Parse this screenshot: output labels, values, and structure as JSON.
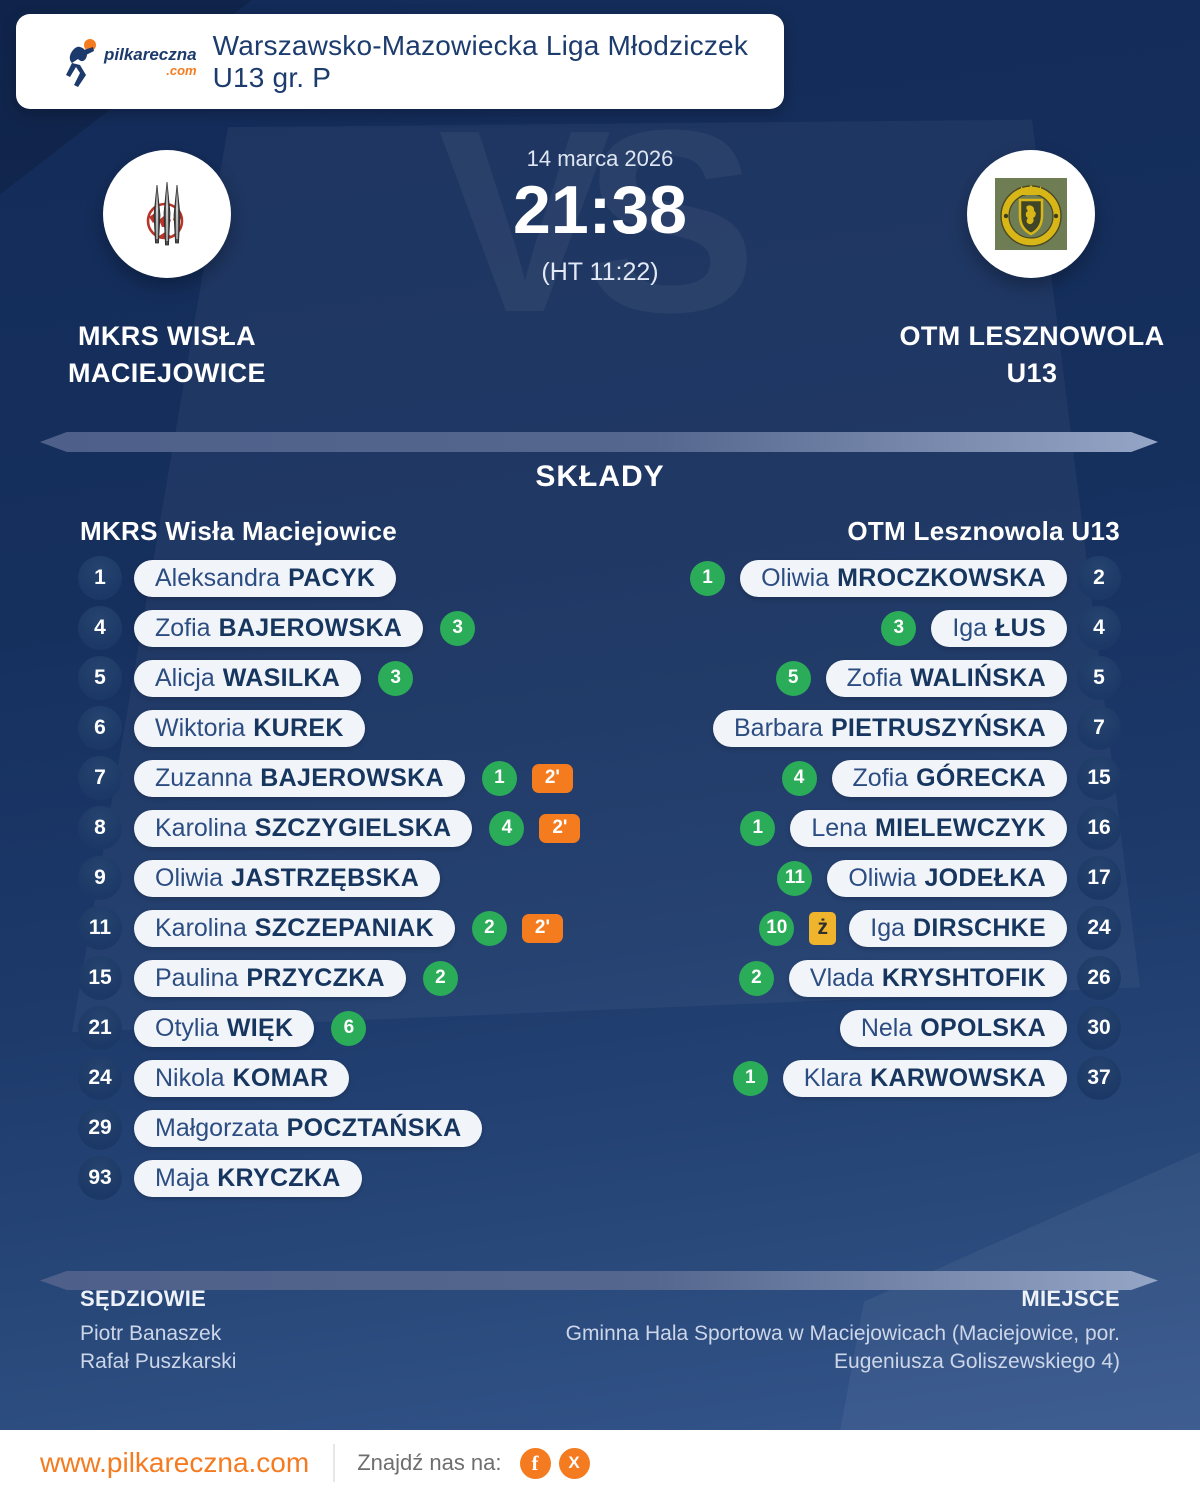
{
  "brand": {
    "name": "pilkareczna",
    "tld": ".com"
  },
  "header": {
    "league_title": "Warszawsko-Mazowiecka Liga Młodziczek U13 gr. P"
  },
  "match": {
    "date": "14 marca 2026",
    "score": "21:38",
    "halftime": "(HT 11:22)",
    "vs_label": "VS",
    "home": {
      "line1": "MKRS WISŁA",
      "line2": "MACIEJOWICE"
    },
    "away": {
      "line1": "OTM LESZNOWOLA",
      "line2": "U13"
    }
  },
  "lineups": {
    "section_title": "SKŁADY",
    "home_team_header": "MKRS Wisła Maciejowice",
    "away_team_header": "OTM Lesznowola U13",
    "badges": {
      "two_min_label": "2'",
      "yellow_label": "ż"
    },
    "home_players": [
      {
        "number": "1",
        "first": "Aleksandra",
        "last": "PACYK",
        "goals": null,
        "two_min": false,
        "yellow": false
      },
      {
        "number": "4",
        "first": "Zofia",
        "last": "BAJEROWSKA",
        "goals": "3",
        "two_min": false,
        "yellow": false
      },
      {
        "number": "5",
        "first": "Alicja",
        "last": "WASILKA",
        "goals": "3",
        "two_min": false,
        "yellow": false
      },
      {
        "number": "6",
        "first": "Wiktoria",
        "last": "KUREK",
        "goals": null,
        "two_min": false,
        "yellow": false
      },
      {
        "number": "7",
        "first": "Zuzanna",
        "last": "BAJEROWSKA",
        "goals": "1",
        "two_min": true,
        "yellow": false
      },
      {
        "number": "8",
        "first": "Karolina",
        "last": "SZCZYGIELSKA",
        "goals": "4",
        "two_min": true,
        "yellow": false
      },
      {
        "number": "9",
        "first": "Oliwia",
        "last": "JASTRZĘBSKA",
        "goals": null,
        "two_min": false,
        "yellow": false
      },
      {
        "number": "11",
        "first": "Karolina",
        "last": "SZCZEPANIAK",
        "goals": "2",
        "two_min": true,
        "yellow": false
      },
      {
        "number": "15",
        "first": "Paulina",
        "last": "PRZYCZKA",
        "goals": "2",
        "two_min": false,
        "yellow": false
      },
      {
        "number": "21",
        "first": "Otylia",
        "last": "WIĘK",
        "goals": "6",
        "two_min": false,
        "yellow": false
      },
      {
        "number": "24",
        "first": "Nikola",
        "last": "KOMAR",
        "goals": null,
        "two_min": false,
        "yellow": false
      },
      {
        "number": "29",
        "first": "Małgorzata",
        "last": "POCZTAŃSKA",
        "goals": null,
        "two_min": false,
        "yellow": false
      },
      {
        "number": "93",
        "first": "Maja",
        "last": "KRYCZKA",
        "goals": null,
        "two_min": false,
        "yellow": false
      }
    ],
    "away_players": [
      {
        "number": "2",
        "first": "Oliwia",
        "last": "MROCZKOWSKA",
        "goals": "1",
        "two_min": false,
        "yellow": false
      },
      {
        "number": "4",
        "first": "Iga",
        "last": "ŁUS",
        "goals": "3",
        "two_min": false,
        "yellow": false
      },
      {
        "number": "5",
        "first": "Zofia",
        "last": "WALIŃSKA",
        "goals": "5",
        "two_min": false,
        "yellow": false
      },
      {
        "number": "7",
        "first": "Barbara",
        "last": "PIETRUSZYŃSKA",
        "goals": null,
        "two_min": false,
        "yellow": false
      },
      {
        "number": "15",
        "first": "Zofia",
        "last": "GÓRECKA",
        "goals": "4",
        "two_min": false,
        "yellow": false
      },
      {
        "number": "16",
        "first": "Lena",
        "last": "MIELEWCZYK",
        "goals": "1",
        "two_min": false,
        "yellow": false
      },
      {
        "number": "17",
        "first": "Oliwia",
        "last": "JODEŁKA",
        "goals": "11",
        "two_min": false,
        "yellow": false
      },
      {
        "number": "24",
        "first": "Iga",
        "last": "DIRSCHKE",
        "goals": "10",
        "two_min": false,
        "yellow": true
      },
      {
        "number": "26",
        "first": "Vlada",
        "last": "KRYSHTOFIK",
        "goals": "2",
        "two_min": false,
        "yellow": false
      },
      {
        "number": "30",
        "first": "Nela",
        "last": "OPOLSKA",
        "goals": null,
        "two_min": false,
        "yellow": false
      },
      {
        "number": "37",
        "first": "Klara",
        "last": "KARWOWSKA",
        "goals": "1",
        "two_min": false,
        "yellow": false
      }
    ]
  },
  "officials": {
    "referees_label": "SĘDZIOWIE",
    "referees": [
      "Piotr Banaszek",
      "Rafał Puszkarski"
    ],
    "venue_label": "MIEJSCE",
    "venue_lines": [
      "Gminna Hala Sportowa w Maciejowicach (Maciejowice, por.",
      "Eugeniusza Goliszewskiego 4)"
    ]
  },
  "footer": {
    "website": "www.pilkareczna.com",
    "find_us": "Znajdź nas na:",
    "facebook_glyph": "f",
    "x_glyph": "X"
  },
  "colors": {
    "goal_green": "#2aac58",
    "two_min_orange": "#f57c1e",
    "card_yellow": "#f0b42c",
    "accent_orange": "#f47b20",
    "navy": "#16305e",
    "pill_bg": "#f1f4f9"
  }
}
